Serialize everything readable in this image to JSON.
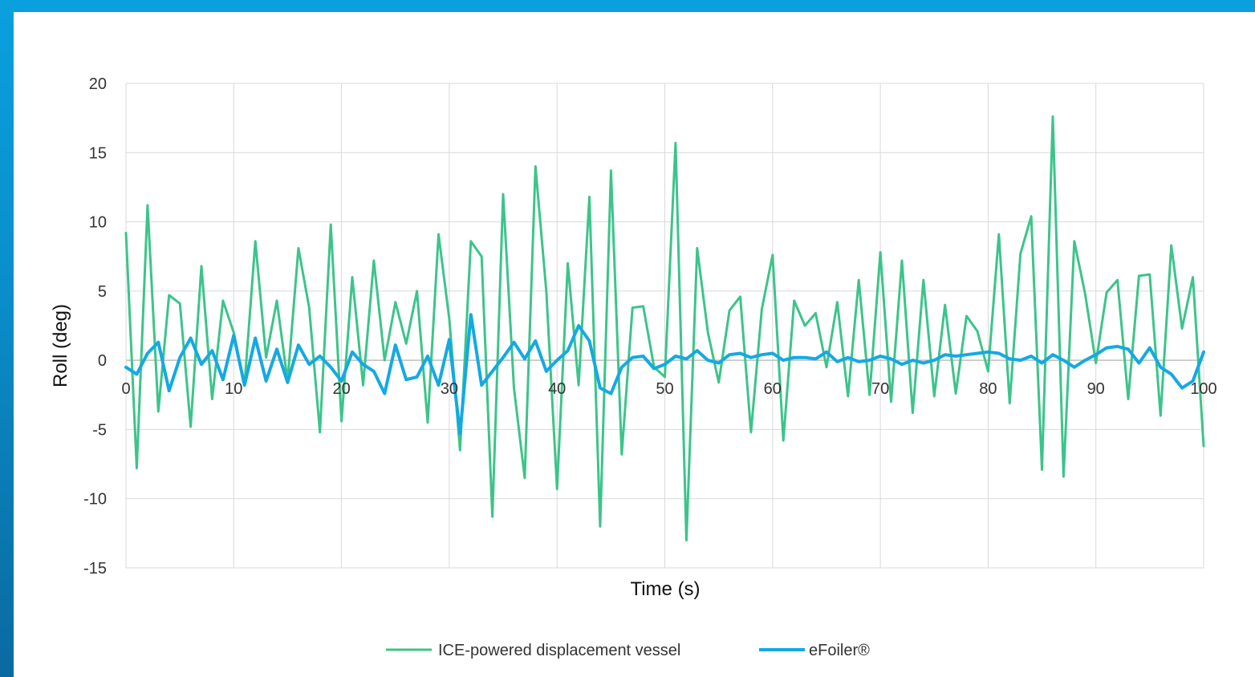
{
  "chart_data": {
    "type": "line",
    "title": "",
    "xlabel": "Time (s)",
    "ylabel": "Roll (deg)",
    "xlim": [
      0,
      100
    ],
    "ylim": [
      -15,
      20
    ],
    "x_ticks": [
      "0",
      "10",
      "20",
      "30",
      "40",
      "50",
      "60",
      "70",
      "80",
      "90",
      "100"
    ],
    "y_ticks": [
      "20",
      "15",
      "10",
      "5",
      "0",
      "-5",
      "-10",
      "-15"
    ],
    "grid": true,
    "legend_position": "bottom",
    "colors": {
      "ice": "#3cc48a",
      "efoil": "#14a9e3",
      "grid": "#d9d9d9",
      "axis": "#bfbfbf"
    },
    "series": [
      {
        "name": "ICE-powered displacement vessel",
        "x": [
          0,
          1,
          2,
          3,
          4,
          5,
          6,
          7,
          8,
          9,
          10,
          11,
          12,
          13,
          14,
          15,
          16,
          17,
          18,
          19,
          20,
          21,
          22,
          23,
          24,
          25,
          26,
          27,
          28,
          29,
          30,
          31,
          32,
          33,
          34,
          35,
          36,
          37,
          38,
          39,
          40,
          41,
          42,
          43,
          44,
          45,
          46,
          47,
          48,
          49,
          50,
          51,
          52,
          53,
          54,
          55,
          56,
          57,
          58,
          59,
          60,
          61,
          62,
          63,
          64,
          65,
          66,
          67,
          68,
          69,
          70,
          71,
          72,
          73,
          74,
          75,
          76,
          77,
          78,
          79,
          80,
          81,
          82,
          83,
          84,
          85,
          86,
          87,
          88,
          89,
          90,
          91,
          92,
          93,
          94,
          95,
          96,
          97,
          98,
          99,
          100
        ],
        "values": [
          9.2,
          -7.8,
          11.2,
          -3.7,
          4.7,
          4.1,
          -4.8,
          6.8,
          -2.8,
          4.3,
          2.0,
          -1.8,
          8.6,
          0.2,
          4.3,
          -1.5,
          8.1,
          3.8,
          -5.2,
          9.8,
          -4.4,
          6.0,
          -1.8,
          7.2,
          0.0,
          4.2,
          1.2,
          5.0,
          -4.5,
          9.1,
          3.0,
          -6.5,
          8.6,
          7.5,
          -11.3,
          12.0,
          -2.0,
          -8.5,
          14.0,
          5.0,
          -9.3,
          7.0,
          -1.8,
          11.8,
          -12.0,
          13.7,
          -6.8,
          3.8,
          3.9,
          -0.5,
          -1.2,
          15.7,
          -13.0,
          8.1,
          2.0,
          -1.6,
          3.6,
          4.6,
          -5.2,
          3.7,
          7.6,
          -5.8,
          4.3,
          2.5,
          3.4,
          -0.5,
          4.2,
          -2.6,
          5.8,
          -2.5,
          7.8,
          -3.0,
          7.2,
          -3.8,
          5.8,
          -2.6,
          4.0,
          -2.4,
          3.2,
          2.1,
          -0.8,
          9.1,
          -3.1,
          7.7,
          10.4,
          -7.9,
          17.6,
          -8.4,
          8.6,
          4.8,
          -0.2,
          4.9,
          5.8,
          -2.8,
          6.1,
          6.2,
          -4.0,
          8.3,
          2.3,
          6.0,
          -6.2
        ]
      },
      {
        "name": "eFoiler®",
        "x": [
          0,
          1,
          2,
          3,
          4,
          5,
          6,
          7,
          8,
          9,
          10,
          11,
          12,
          13,
          14,
          15,
          16,
          17,
          18,
          19,
          20,
          21,
          22,
          23,
          24,
          25,
          26,
          27,
          28,
          29,
          30,
          31,
          32,
          33,
          34,
          35,
          36,
          37,
          38,
          39,
          40,
          41,
          42,
          43,
          44,
          45,
          46,
          47,
          48,
          49,
          50,
          51,
          52,
          53,
          54,
          55,
          56,
          57,
          58,
          59,
          60,
          61,
          62,
          63,
          64,
          65,
          66,
          67,
          68,
          69,
          70,
          71,
          72,
          73,
          74,
          75,
          76,
          77,
          78,
          79,
          80,
          81,
          82,
          83,
          84,
          85,
          86,
          87,
          88,
          89,
          90,
          91,
          92,
          93,
          94,
          95,
          96,
          97,
          98,
          99,
          100
        ],
        "values": [
          -0.5,
          -1.0,
          0.5,
          1.3,
          -2.2,
          0.2,
          1.6,
          -0.3,
          0.7,
          -1.4,
          1.8,
          -1.8,
          1.6,
          -1.5,
          0.8,
          -1.6,
          1.1,
          -0.3,
          0.3,
          -0.5,
          -1.5,
          0.6,
          -0.3,
          -0.8,
          -2.4,
          1.1,
          -1.4,
          -1.2,
          0.3,
          -1.8,
          1.5,
          -5.3,
          3.3,
          -1.8,
          -0.8,
          0.2,
          1.3,
          0.1,
          1.4,
          -0.8,
          0.0,
          0.7,
          2.5,
          1.4,
          -2.0,
          -2.4,
          -0.5,
          0.2,
          0.3,
          -0.6,
          -0.3,
          0.3,
          0.1,
          0.7,
          0.0,
          -0.2,
          0.4,
          0.5,
          0.2,
          0.4,
          0.5,
          0.0,
          0.2,
          0.2,
          0.1,
          0.6,
          -0.1,
          0.2,
          -0.1,
          0.0,
          0.3,
          0.1,
          -0.3,
          0.0,
          -0.2,
          0.0,
          0.4,
          0.3,
          0.4,
          0.5,
          0.6,
          0.5,
          0.1,
          0.0,
          0.3,
          -0.2,
          0.4,
          0.0,
          -0.5,
          0.0,
          0.4,
          0.9,
          1.0,
          0.8,
          -0.2,
          0.9,
          -0.5,
          -1.0,
          -2.0,
          -1.5,
          0.6
        ]
      }
    ]
  }
}
